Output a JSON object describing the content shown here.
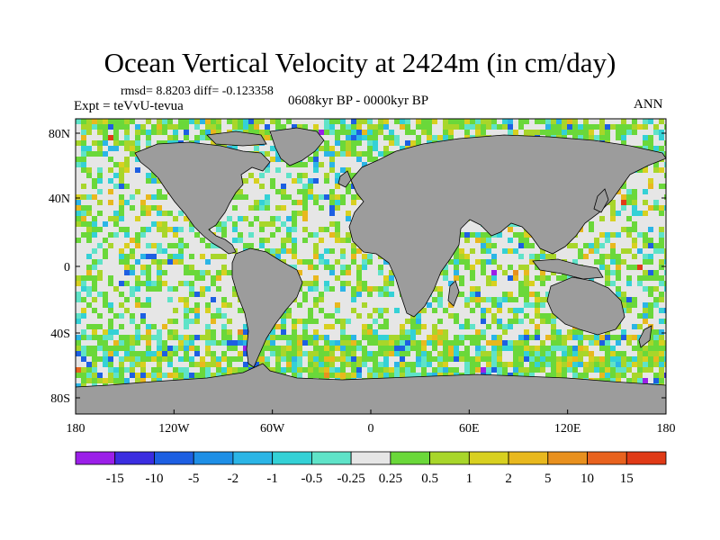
{
  "title": "Ocean Vertical Velocity at 2424m (in cm/day)",
  "stats": "rmsd= 8.8203  diff= -0.123358",
  "experiment": "Expt = teVvU-tevua",
  "period": "0608kyr BP - 0000kyr BP",
  "season": "ANN",
  "lat_labels": [
    "80N",
    "40N",
    "0",
    "40S",
    "80S"
  ],
  "lon_labels": [
    "180",
    "120W",
    "60W",
    "0",
    "60E",
    "120E",
    "180"
  ],
  "colors": {
    "land": "#9c9c9c",
    "near_zero": "#e6e6e6",
    "coast": "#000000"
  },
  "colorbar": {
    "labels": [
      "-15",
      "-10",
      "-5",
      "-2",
      "-1",
      "-0.5",
      "-0.25",
      "0.25",
      "0.5",
      "1",
      "2",
      "5",
      "10",
      "15"
    ],
    "colors": [
      "#9b1fe8",
      "#3b2de0",
      "#1d5fe2",
      "#1e8fe6",
      "#2bb5e6",
      "#34d1d6",
      "#5fe3c8",
      "#e6e6e6",
      "#6ad83a",
      "#a8d62a",
      "#d8d020",
      "#e8b81e",
      "#e8901e",
      "#e8621e",
      "#e03a16"
    ]
  }
}
